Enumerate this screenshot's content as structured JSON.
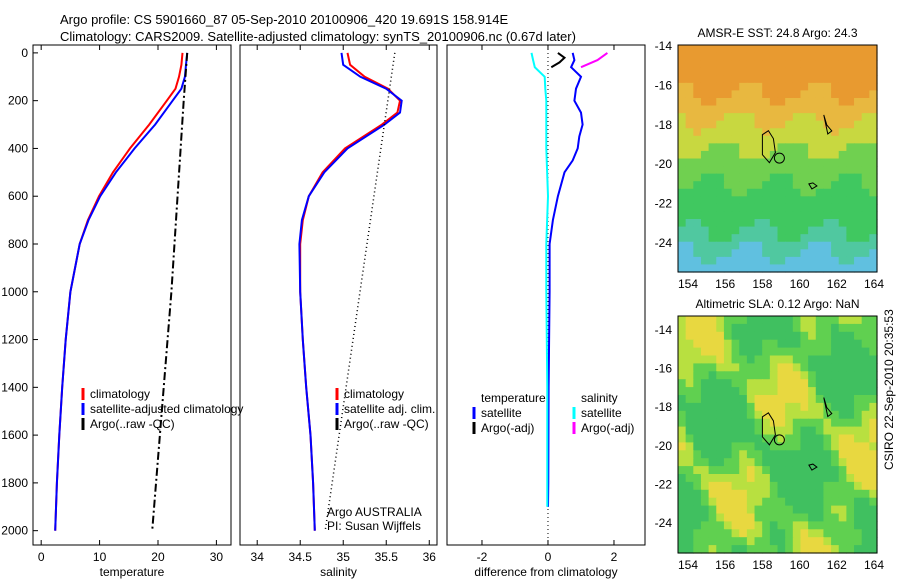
{
  "header": {
    "line1": "Argo profile: CS 5901660_87 05-Sep-2010 20100906_420 19.691S 158.914E",
    "line2": "Climatology: CARS2009. Satellite-adjusted climatology: synTS_20100906.nc (0.67d later)"
  },
  "side_label": "CSIRO 22-Sep-2010 20:35:53",
  "chart_data": [
    {
      "type": "line",
      "xlabel": "temperature",
      "ylabel": "",
      "xlim": [
        -1.4,
        32.5
      ],
      "ylim": [
        2060,
        -33
      ],
      "xticks": [
        0,
        10,
        20,
        30
      ],
      "yticks": [
        0,
        200,
        400,
        600,
        800,
        1000,
        1200,
        1400,
        1600,
        1800,
        2000
      ],
      "legend": {
        "placement": "lower-center",
        "entries": [
          "climatology",
          "satellite-adjusted climatology",
          "Argo(..raw -QC)"
        ]
      },
      "series": [
        {
          "name": "climatology",
          "color": "#ff0000",
          "style": "solid",
          "depth": [
            0,
            50,
            100,
            150,
            200,
            300,
            400,
            500,
            600,
            700,
            800,
            1000,
            1200,
            1400,
            1600,
            1800,
            2000
          ],
          "values": [
            24.2,
            24.0,
            23.6,
            23.0,
            21.5,
            18.5,
            15.2,
            12.3,
            9.9,
            8.0,
            6.6,
            5.0,
            4.2,
            3.6,
            3.1,
            2.7,
            2.4
          ]
        },
        {
          "name": "satellite-adjusted climatology",
          "color": "#0000ff",
          "style": "solid",
          "depth": [
            0,
            50,
            100,
            150,
            200,
            300,
            400,
            500,
            600,
            700,
            800,
            1000,
            1200,
            1400,
            1600,
            1800,
            2000
          ],
          "values": [
            25.0,
            24.8,
            24.6,
            24.0,
            22.5,
            19.5,
            16.0,
            12.8,
            10.1,
            8.1,
            6.6,
            5.0,
            4.2,
            3.6,
            3.1,
            2.7,
            2.4
          ]
        },
        {
          "name": "Argo(..raw -QC)",
          "color": "#000000",
          "style": "dashdot",
          "depth": [
            0,
            200,
            1000,
            2000
          ],
          "values": [
            25.0,
            24.4,
            22.3,
            19.0
          ]
        }
      ]
    },
    {
      "type": "line",
      "xlabel": "salinity",
      "ylabel": "",
      "xlim": [
        33.8,
        36.09
      ],
      "ylim": [
        2060,
        -33
      ],
      "xticks": [
        34,
        34.5,
        35,
        35.5,
        36
      ],
      "yticks": [],
      "legend": {
        "placement": "lower-center",
        "entries": [
          "climatology",
          "satellite adj. clim.",
          "Argo(..raw -QC)"
        ]
      },
      "annotation": [
        "Argo AUSTRALIA",
        "PI: Susan Wijffels"
      ],
      "series": [
        {
          "name": "climatology",
          "color": "#ff0000",
          "style": "solid",
          "depth": [
            0,
            50,
            100,
            150,
            200,
            250,
            300,
            400,
            500,
            600,
            700,
            800,
            1000,
            1200,
            1400,
            1600,
            1800,
            2000
          ],
          "values": [
            35.05,
            35.08,
            35.25,
            35.52,
            35.66,
            35.63,
            35.45,
            35.02,
            34.76,
            34.6,
            34.53,
            34.5,
            34.5,
            34.53,
            34.57,
            34.62,
            34.65,
            34.67
          ]
        },
        {
          "name": "satellite adj. clim.",
          "color": "#0000ff",
          "style": "solid",
          "depth": [
            0,
            50,
            100,
            150,
            200,
            250,
            300,
            400,
            500,
            600,
            700,
            800,
            1000,
            1200,
            1400,
            1600,
            1800,
            2000
          ],
          "values": [
            34.98,
            35.0,
            35.2,
            35.5,
            35.68,
            35.66,
            35.48,
            35.05,
            34.78,
            34.6,
            34.52,
            34.49,
            34.5,
            34.53,
            34.57,
            34.62,
            34.65,
            34.67
          ]
        },
        {
          "name": "Argo(..raw -QC)",
          "color": "#000000",
          "style": "dotted",
          "depth": [
            0,
            2000
          ],
          "values": [
            35.6,
            34.79
          ]
        }
      ]
    },
    {
      "type": "line",
      "xlabel": "difference from climatology",
      "ylabel": "",
      "xlim": [
        -3.06,
        2.94
      ],
      "ylim": [
        2060,
        -33
      ],
      "xticks": [
        -2,
        0,
        2
      ],
      "yticks": [],
      "legend": {
        "placement": "lower-center",
        "headers": [
          "temperature",
          "salinity"
        ],
        "entries": [
          "satellite",
          "Argo(-adj)",
          "satellite",
          "Argo(-adj)"
        ]
      },
      "series": [
        {
          "name": "temperature satellite",
          "color": "#0000ff",
          "style": "solid",
          "depth": [
            0,
            30,
            60,
            100,
            150,
            200,
            250,
            300,
            350,
            400,
            450,
            500,
            600,
            700,
            800,
            1000,
            1400,
            1800,
            1900
          ],
          "values": [
            0.75,
            0.8,
            0.7,
            1.0,
            0.85,
            0.8,
            1.0,
            1.05,
            0.95,
            0.9,
            0.75,
            0.5,
            0.3,
            0.15,
            0.05,
            0.05,
            0.02,
            0.01,
            0.0
          ]
        },
        {
          "name": "temperature Argo(-adj)",
          "color": "#000000",
          "style": "solid",
          "depth": [
            0,
            20,
            40,
            60
          ],
          "values": [
            0.3,
            0.5,
            0.35,
            0.1
          ]
        },
        {
          "name": "salinity satellite",
          "color": "#00ffff",
          "style": "solid",
          "depth": [
            0,
            30,
            60,
            100,
            150,
            200,
            300,
            400,
            600,
            800,
            1000,
            1400,
            1800,
            1900
          ],
          "values": [
            -0.5,
            -0.45,
            -0.4,
            -0.1,
            -0.08,
            -0.05,
            -0.05,
            -0.05,
            0.0,
            -0.05,
            -0.05,
            -0.02,
            -0.02,
            -0.02
          ]
        },
        {
          "name": "salinity Argo(-adj)",
          "color": "#ff00ff",
          "style": "solid",
          "depth": [
            0,
            30,
            60
          ],
          "values": [
            1.8,
            1.5,
            1.0
          ]
        }
      ]
    }
  ],
  "maps": [
    {
      "title": "AMSR-E SST: 24.8 Argo: 24.3",
      "lon_ticks": [
        154,
        156,
        158,
        160,
        162,
        164
      ],
      "lat_ticks": [
        -14,
        -16,
        -18,
        -20,
        -22,
        -24
      ]
    },
    {
      "title": "Altimetric SLA: 0.12 Argo: NaN",
      "lon_ticks": [
        154,
        156,
        158,
        160,
        162,
        164
      ],
      "lat_ticks": [
        -14,
        -16,
        -18,
        -20,
        -22,
        -24
      ]
    }
  ]
}
